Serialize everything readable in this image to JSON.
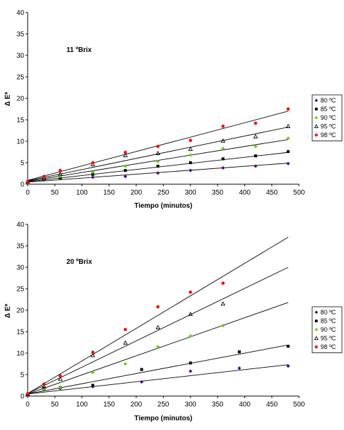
{
  "chart_data": [
    {
      "type": "scatter",
      "annotation": "11 ºBrix",
      "xlabel": "Tiempo (minutos)",
      "ylabel": "Δ E*",
      "xlim": [
        0,
        500
      ],
      "ylim": [
        0,
        40
      ],
      "xticks": [
        0,
        50,
        100,
        150,
        200,
        250,
        300,
        350,
        400,
        450,
        500
      ],
      "yticks": [
        0,
        5,
        10,
        15,
        20,
        25,
        30,
        35,
        40
      ],
      "grid": false,
      "legend": "right",
      "series": [
        {
          "name": "80 ºC",
          "marker": "diamond",
          "color": "#4b0082",
          "x": [
            0,
            30,
            60,
            120,
            180,
            240,
            300,
            360,
            420,
            480
          ],
          "y": [
            0.5,
            1.0,
            1.3,
            1.6,
            1.8,
            2.6,
            3.2,
            3.8,
            4.2,
            4.8
          ],
          "fit": [
            0.5,
            4.9
          ]
        },
        {
          "name": "85 ºC",
          "marker": "square",
          "color": "#000000",
          "x": [
            0,
            30,
            60,
            120,
            180,
            240,
            300,
            360,
            420,
            480
          ],
          "y": [
            0.5,
            1.2,
            1.5,
            2.3,
            3.2,
            4.2,
            5.0,
            5.9,
            6.6,
            7.6
          ],
          "fit": [
            0.6,
            7.4
          ]
        },
        {
          "name": "90 ºC",
          "marker": "diamond",
          "color": "#66cc00",
          "x": [
            0,
            30,
            60,
            120,
            180,
            240,
            300,
            360,
            420,
            480
          ],
          "y": [
            0.5,
            1.3,
            1.8,
            2.8,
            4.2,
            5.3,
            6.8,
            8.3,
            8.8,
            10.7
          ],
          "fit": [
            0.7,
            10.4
          ]
        },
        {
          "name": "95 ºC",
          "marker": "triangle",
          "color": "#000000",
          "x": [
            0,
            30,
            60,
            120,
            180,
            240,
            300,
            360,
            420,
            480
          ],
          "y": [
            0.6,
            1.5,
            2.4,
            4.6,
            6.7,
            7.2,
            8.2,
            10.1,
            11.1,
            13.5
          ],
          "fit": [
            0.8,
            13.3
          ]
        },
        {
          "name": "98 ºC",
          "marker": "circle",
          "color": "#ff0000",
          "x": [
            0,
            30,
            60,
            120,
            180,
            240,
            300,
            360,
            420,
            480
          ],
          "y": [
            0.6,
            1.8,
            3.2,
            5.0,
            7.4,
            8.8,
            10.2,
            13.5,
            14.2,
            17.5
          ],
          "fit": [
            0.9,
            17.0
          ]
        }
      ]
    },
    {
      "type": "scatter",
      "annotation": "20 ºBrix",
      "xlabel": "Tiempo (minutos)",
      "ylabel": "Δ E*",
      "xlim": [
        0,
        500
      ],
      "ylim": [
        0,
        40
      ],
      "xticks": [
        0,
        50,
        100,
        150,
        200,
        250,
        300,
        350,
        400,
        450,
        500
      ],
      "yticks": [
        0,
        5,
        10,
        15,
        20,
        25,
        30,
        35,
        40
      ],
      "grid": false,
      "legend": "right",
      "series": [
        {
          "name": "80 ºC",
          "marker": "diamond",
          "color": "#4b0082",
          "x": [
            0,
            30,
            60,
            120,
            210,
            300,
            390,
            480
          ],
          "y": [
            0.5,
            1.5,
            1.8,
            2.2,
            3.3,
            5.8,
            6.5,
            7.0
          ],
          "fit": [
            0.5,
            7.3
          ]
        },
        {
          "name": "85 ºC",
          "marker": "square",
          "color": "#000000",
          "x": [
            0,
            30,
            60,
            120,
            210,
            300,
            390,
            480
          ],
          "y": [
            0.5,
            1.8,
            2.0,
            2.5,
            6.2,
            7.7,
            10.3,
            11.6
          ],
          "fit": [
            0.5,
            11.9
          ]
        },
        {
          "name": "90 ºC",
          "marker": "diamond",
          "color": "#66cc00",
          "x": [
            0,
            30,
            60,
            120,
            180,
            240,
            300,
            360
          ],
          "y": [
            0.5,
            1.6,
            2.0,
            5.5,
            7.5,
            11.5,
            14.0,
            16.4
          ],
          "fit": [
            0.5,
            21.8
          ]
        },
        {
          "name": "95 ºC",
          "marker": "triangle",
          "color": "#000000",
          "x": [
            0,
            30,
            60,
            120,
            180,
            240,
            300,
            360
          ],
          "y": [
            0.5,
            2.2,
            4.0,
            9.5,
            12.4,
            16.0,
            19.1,
            21.5
          ],
          "fit": [
            0.6,
            30.0
          ]
        },
        {
          "name": "98 ºC",
          "marker": "circle",
          "color": "#ff0000",
          "x": [
            0,
            30,
            60,
            120,
            180,
            240,
            300,
            360
          ],
          "y": [
            0.5,
            2.8,
            4.7,
            10.2,
            15.5,
            20.8,
            24.2,
            26.3
          ],
          "fit": [
            0.6,
            37.0
          ]
        }
      ]
    }
  ]
}
